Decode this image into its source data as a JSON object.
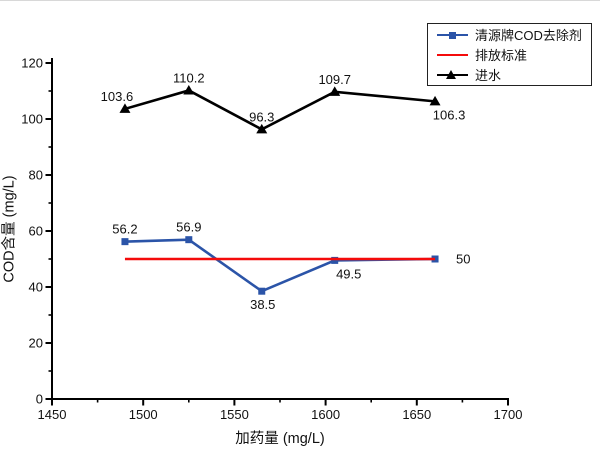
{
  "page": {
    "background": "#ffffff"
  },
  "colors": {
    "axis": "#000000",
    "text": "#111111"
  },
  "chart_data": {
    "type": "line",
    "title": "",
    "xlabel": "加药量 (mg/L)",
    "ylabel": "COD含量 (mg/L)",
    "xlim": [
      1450,
      1700
    ],
    "ylim": [
      0,
      120
    ],
    "x_ticks": [
      1450,
      1500,
      1550,
      1600,
      1650,
      1700
    ],
    "x_minor_ticks": [
      1475,
      1525,
      1575,
      1625,
      1675
    ],
    "y_ticks": [
      0,
      20,
      40,
      60,
      80,
      100,
      120
    ],
    "y_minor_ticks": [
      10,
      30,
      50,
      70,
      90,
      110
    ],
    "grid": false,
    "legend_position": "top-right",
    "x": [
      1490,
      1525,
      1565,
      1605,
      1660
    ],
    "series": [
      {
        "name": "清源牌COD去除剂",
        "marker": "square",
        "color": "#2b54a8",
        "values": [
          56.2,
          56.9,
          38.5,
          49.5,
          50
        ],
        "point_labels": [
          "56.2",
          "56.9",
          "38.5",
          "49.5",
          "50"
        ],
        "label_pos": [
          "above",
          "above",
          "below",
          "below-right",
          "right"
        ]
      },
      {
        "name": "排放标准",
        "marker": "none",
        "color": "#f40b0b",
        "values": [
          50,
          50,
          50,
          50,
          50
        ],
        "point_labels": [
          "",
          "",
          "",
          "",
          ""
        ],
        "label_pos": [
          "above",
          "above",
          "above",
          "above",
          "above"
        ]
      },
      {
        "name": "进水",
        "marker": "triangle",
        "color": "#000000",
        "values": [
          103.6,
          110.2,
          96.3,
          109.7,
          106.3
        ],
        "point_labels": [
          "103.6",
          "110.2",
          "96.3",
          "109.7",
          "106.3"
        ],
        "label_pos": [
          "above-left",
          "above",
          "above",
          "above",
          "below-right"
        ]
      }
    ]
  }
}
